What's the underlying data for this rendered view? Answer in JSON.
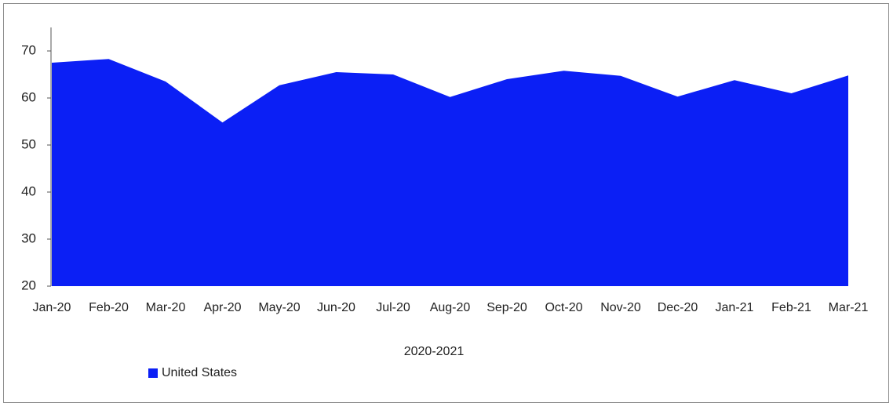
{
  "chart_data": {
    "type": "area",
    "xlabel": "2020-2021",
    "categories": [
      "Jan-20",
      "Feb-20",
      "Mar-20",
      "Apr-20",
      "May-20",
      "Jun-20",
      "Jul-20",
      "Aug-20",
      "Sep-20",
      "Oct-20",
      "Nov-20",
      "Dec-20",
      "Jan-21",
      "Feb-21",
      "Mar-21"
    ],
    "series": [
      {
        "name": "United States",
        "color": "#0b1ff5",
        "values": [
          67.5,
          68.3,
          63.5,
          54.8,
          62.7,
          65.5,
          65,
          60.2,
          64,
          65.8,
          64.7,
          60.3,
          63.8,
          61,
          64.8
        ]
      }
    ],
    "ylim": [
      20,
      75
    ],
    "yticks": [
      20,
      30,
      40,
      50,
      60,
      70
    ],
    "legend": "bottom-left"
  }
}
